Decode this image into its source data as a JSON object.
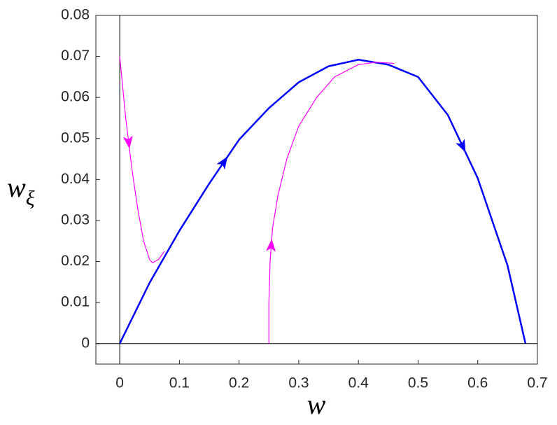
{
  "chart_data": {
    "type": "line",
    "xlabel": "w",
    "ylabel_base": "w",
    "ylabel_subscript": "ξ",
    "xlim": [
      -0.04,
      0.7
    ],
    "ylim": [
      -0.005,
      0.08
    ],
    "xticks": [
      0,
      0.1,
      0.2,
      0.3,
      0.4,
      0.5,
      0.6,
      0.7
    ],
    "yticks": [
      0,
      0.01,
      0.02,
      0.03,
      0.04,
      0.05,
      0.06,
      0.07,
      0.08
    ],
    "series": [
      {
        "color": "#0000ff",
        "x": [
          0,
          0.05,
          0.1,
          0.15,
          0.2,
          0.25,
          0.3,
          0.35,
          0.4,
          0.45,
          0.5,
          0.55,
          0.6,
          0.65,
          0.68
        ],
        "values": [
          0,
          0.0148,
          0.0275,
          0.039,
          0.0497,
          0.0574,
          0.0637,
          0.0676,
          0.0692,
          0.068,
          0.065,
          0.0557,
          0.0403,
          0.019,
          0
        ]
      },
      {
        "color": "#ff00ff",
        "x": [
          0,
          0.01,
          0.02,
          0.03,
          0.04,
          0.05,
          0.055,
          0.065,
          0.075
        ],
        "values": [
          0.07,
          0.055,
          0.043,
          0.033,
          0.025,
          0.0205,
          0.0197,
          0.0205,
          0.0225
        ]
      },
      {
        "color": "#ff00ff",
        "x": [
          0.25,
          0.25,
          0.252,
          0.256,
          0.265,
          0.28,
          0.3,
          0.33,
          0.36,
          0.4,
          0.43,
          0.46
        ],
        "values": [
          0,
          0.01,
          0.02,
          0.028,
          0.036,
          0.045,
          0.053,
          0.06,
          0.065,
          0.068,
          0.0686,
          0.0683
        ]
      }
    ]
  }
}
